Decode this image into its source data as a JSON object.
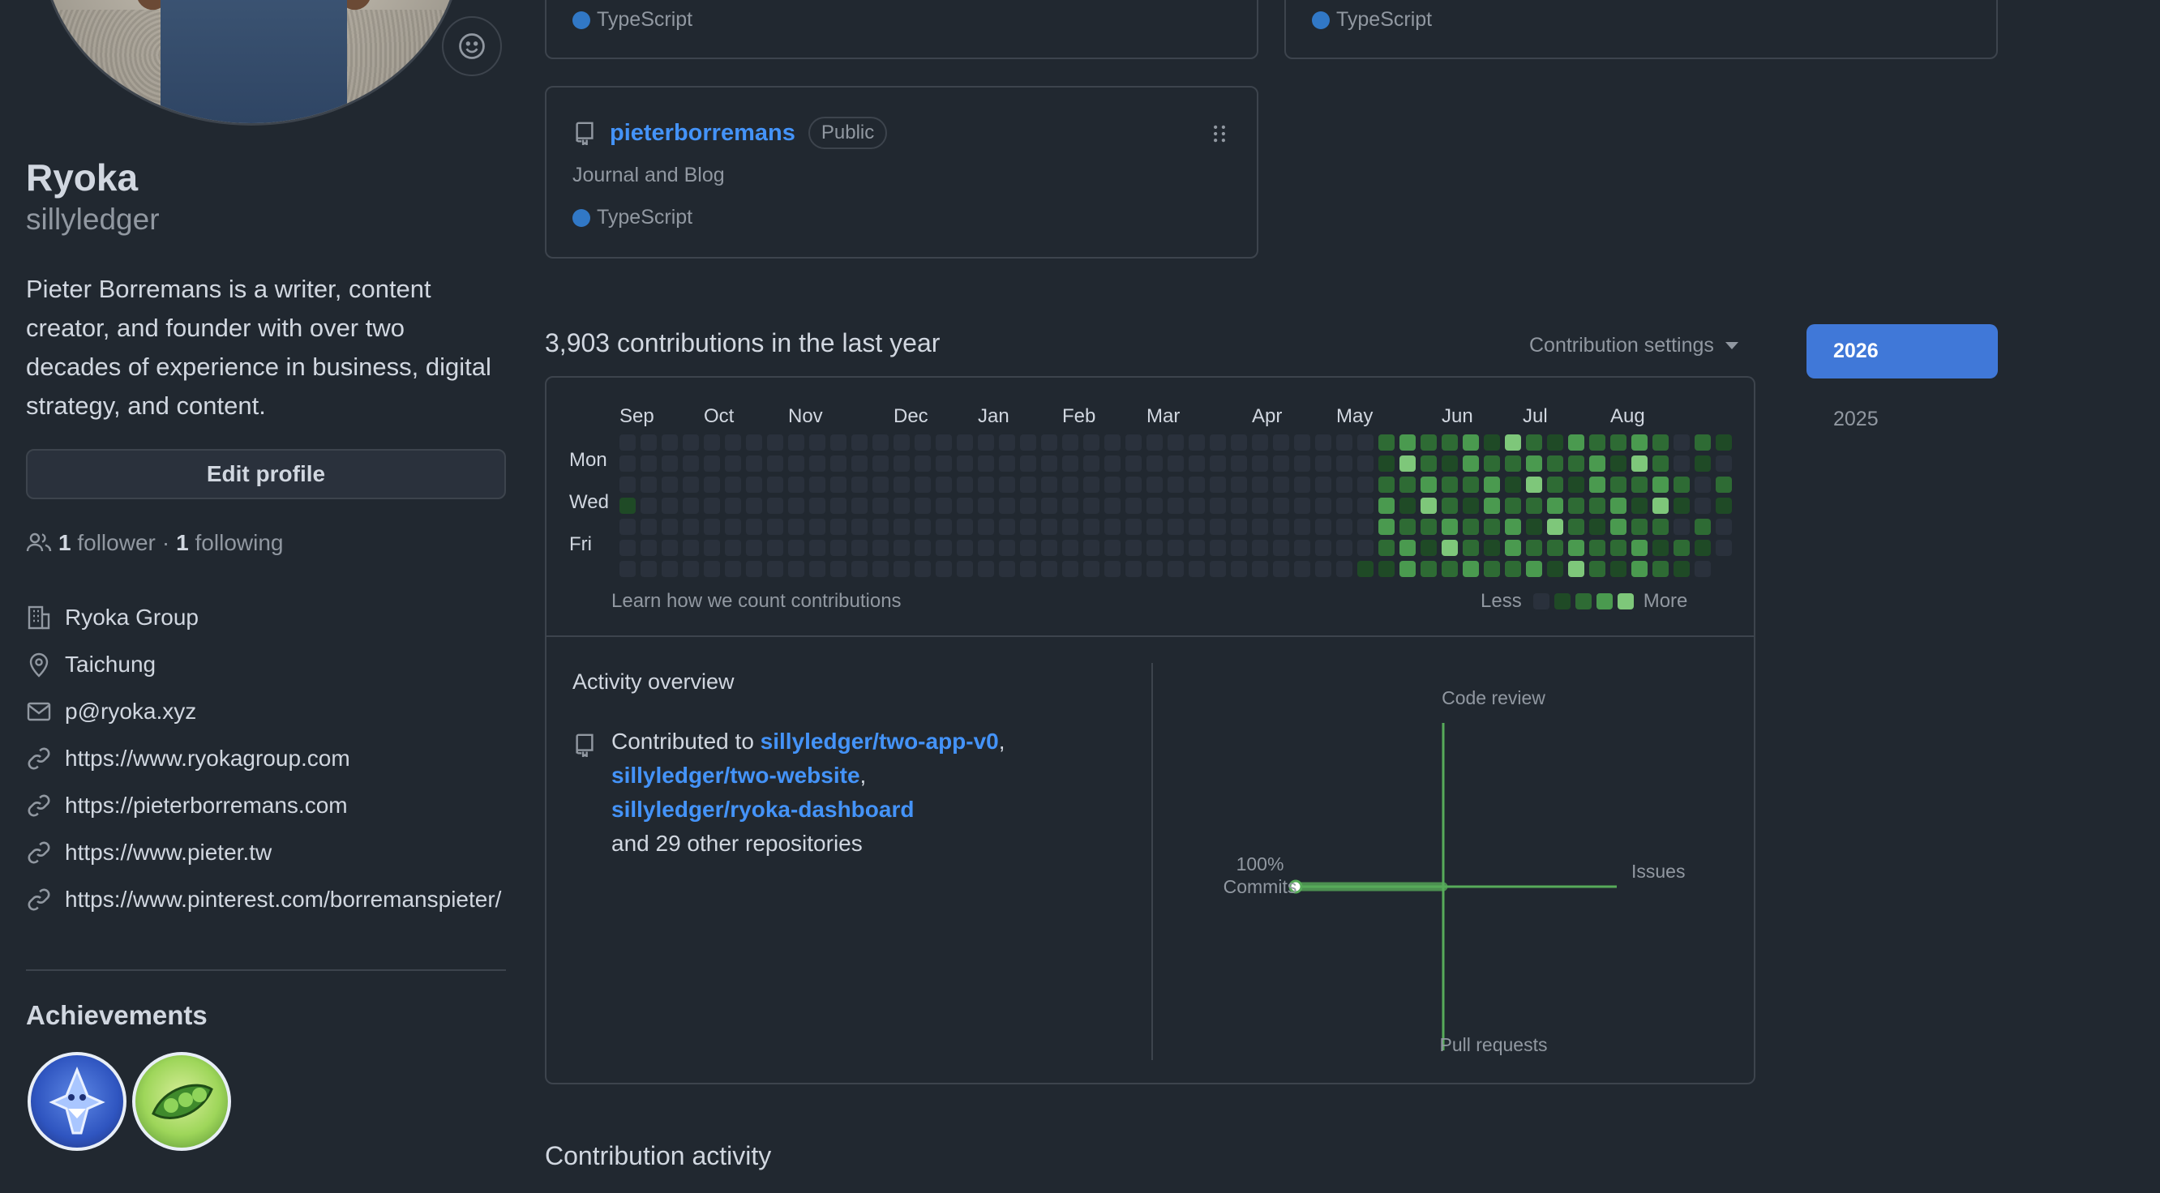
{
  "profile": {
    "name": "Ryoka",
    "login": "sillyledger",
    "bio": "Pieter Borremans is a writer, content creator, and founder with over two decades of experience in business, digital strategy, and content.",
    "edit_label": "Edit profile",
    "followers_count": "1",
    "followers_label": "follower",
    "separator": "·",
    "following_count": "1",
    "following_label": "following",
    "details": [
      {
        "icon": "organization-icon",
        "text": "Ryoka Group"
      },
      {
        "icon": "location-icon",
        "text": "Taichung"
      },
      {
        "icon": "mail-icon",
        "text": "p@ryoka.xyz"
      },
      {
        "icon": "link-icon",
        "text": "https://www.ryokagroup.com"
      },
      {
        "icon": "link-icon",
        "text": "https://pieterborremans.com"
      },
      {
        "icon": "link-icon",
        "text": "https://www.pieter.tw"
      },
      {
        "icon": "link-icon",
        "text": "https://www.pinterest.com/borremanspieter/"
      }
    ],
    "achievements_title": "Achievements",
    "achievements": [
      "shark-achievement-badge",
      "pea-pod-achievement-badge"
    ]
  },
  "repos": {
    "top_left_lang": "TypeScript",
    "top_right_lang": "TypeScript",
    "card": {
      "name": "pieterborremans",
      "visibility": "Public",
      "description": "Journal and Blog",
      "lang": "TypeScript"
    },
    "lang_color": "#3178c6"
  },
  "contributions": {
    "title": "3,903 contributions in the last year",
    "settings_label": "Contribution settings",
    "years": [
      "2026",
      "2025"
    ],
    "months": [
      "Sep",
      "Oct",
      "Nov",
      "Dec",
      "Jan",
      "Feb",
      "Mar",
      "Apr",
      "May",
      "Jun",
      "Jul",
      "Aug"
    ],
    "days": [
      "Mon",
      "Wed",
      "Fri"
    ],
    "learn_label": "Learn how we count contributions",
    "less_label": "Less",
    "more_label": "More",
    "level_colors": [
      "#2a313c",
      "#1f4a26",
      "#2e6b34",
      "#4a9a4f",
      "#7ec77a"
    ]
  },
  "overview": {
    "title": "Activity overview",
    "contributed_prefix": "Contributed to",
    "repo1": "sillyledger/two-app-v0",
    "repo2": "sillyledger/two-website",
    "repo3": "sillyledger/ryoka-dashboard",
    "other": "and 29 other repositories",
    "axis_top": "Code review",
    "axis_bottom": "Pull requests",
    "axis_right": "Issues",
    "axis_left_pct": "100%",
    "axis_left": "Commits"
  },
  "activity_title": "Contribution activity"
}
